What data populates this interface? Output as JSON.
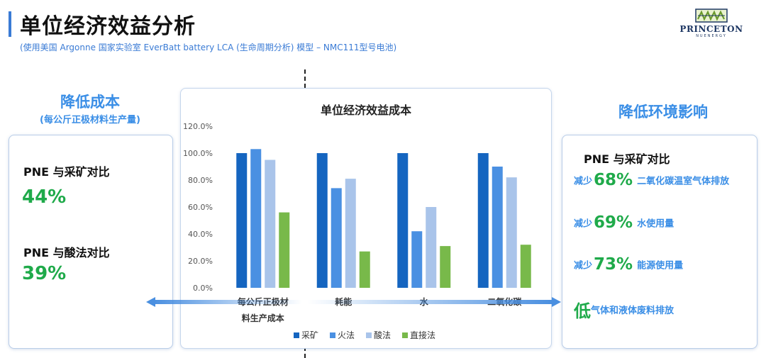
{
  "header": {
    "title": "单位经济效益分析",
    "subtitle": "(使用美国 Argonne 国家实验室 EverBatt battery LCA (生命周期分析) 模型 – NMC111型号电池)"
  },
  "logo": {
    "name": "PRINCETON",
    "sub": "NUENERGY"
  },
  "left_panel": {
    "heading": "降低成本",
    "subheading": "(每公斤正极材料生产量)",
    "comparisons": [
      {
        "label": "PNE 与采矿对比",
        "value": "44%"
      },
      {
        "label": "PNE 与酸法对比",
        "value": "39%"
      }
    ]
  },
  "right_panel": {
    "heading": "降低环境影响",
    "label": "PNE 与采矿对比",
    "items": [
      {
        "prefix": "减少",
        "pct": "68%",
        "text": "二氧化碳温室气体排放"
      },
      {
        "prefix": "减少",
        "pct": "69%",
        "text": "水使用量"
      },
      {
        "prefix": "减少",
        "pct": "73%",
        "text": "能源使用量"
      }
    ],
    "last": {
      "big": "低",
      "text": "气体和液体废料排放"
    }
  },
  "colors": {
    "accent": "#3a8ee6",
    "green": "#1faa4a"
  },
  "chart_data": {
    "type": "bar",
    "title": "单位经济效益成本",
    "categories": [
      [
        "每公斤正极材",
        "料生产成本"
      ],
      [
        "耗能"
      ],
      [
        "水"
      ],
      [
        "二氧化碳"
      ]
    ],
    "series": [
      {
        "name": "采矿",
        "color": "#1565c0",
        "values": [
          100,
          100,
          100,
          100
        ]
      },
      {
        "name": "火法",
        "color": "#4a90e2",
        "values": [
          103,
          74,
          42,
          90
        ]
      },
      {
        "name": "酸法",
        "color": "#a9c4ea",
        "values": [
          95,
          81,
          60,
          82
        ]
      },
      {
        "name": "直接法",
        "color": "#78b94a",
        "values": [
          56,
          27,
          31,
          32
        ]
      }
    ],
    "yticks": [
      "0.0%",
      "20.0%",
      "40.0%",
      "60.0%",
      "80.0%",
      "100.0%",
      "120.0%"
    ],
    "ylim": [
      0,
      120
    ],
    "grid": false,
    "legend_position": "bottom"
  }
}
